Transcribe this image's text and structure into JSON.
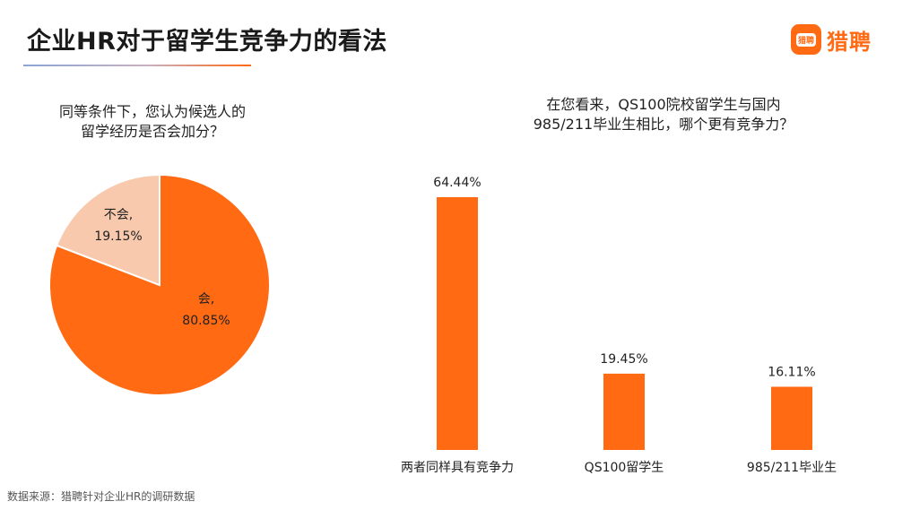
{
  "title": "企业HR对于留学生竞争力的看法",
  "logo": {
    "badge_text": "猎聘",
    "text": "猎聘"
  },
  "source": "数据来源：猎聘针对企业HR的调研数据",
  "colors": {
    "accent": "#ff6a13",
    "light": "#f8c9ad",
    "text": "#222222"
  },
  "chart_data": [
    {
      "type": "pie",
      "title_lines": [
        "同等条件下，您认为候选人的",
        "留学经历是否会加分？"
      ],
      "slices": [
        {
          "label": "会,",
          "value": 80.85,
          "value_label": "80.85%",
          "color": "#ff6a13"
        },
        {
          "label": "不会,",
          "value": 19.15,
          "value_label": "19.15%",
          "color": "#f8c9ad"
        }
      ]
    },
    {
      "type": "bar",
      "title_lines": [
        "在您看来，QS100院校留学生与国内",
        "985/211毕业生相比，哪个更有竞争力？"
      ],
      "categories": [
        "两者同样具有竞争力",
        "QS100留学生",
        "985/211毕业生"
      ],
      "values": [
        64.44,
        19.45,
        16.11
      ],
      "value_labels": [
        "64.44%",
        "19.45%",
        "16.11%"
      ],
      "color": "#ff6a13"
    }
  ]
}
